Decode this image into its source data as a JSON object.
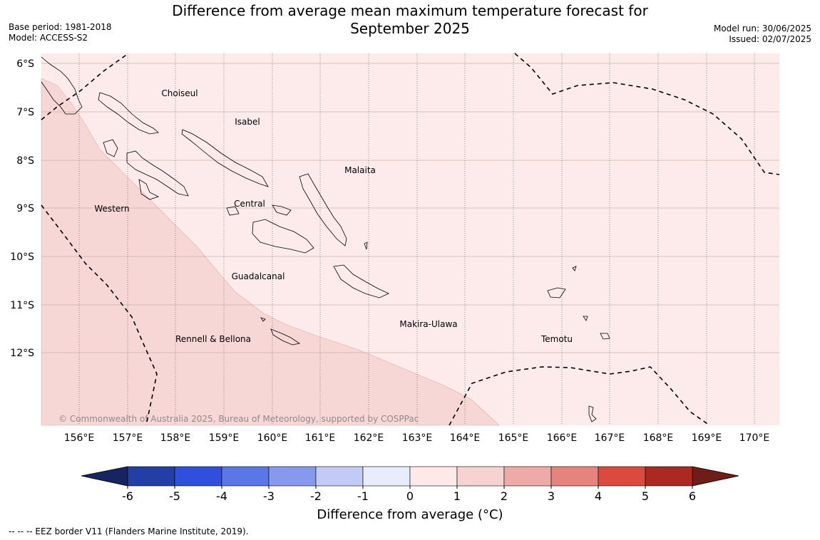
{
  "title_line1": "Difference from average mean maximum temperature forecast for",
  "title_line2": "September 2025",
  "base_period": "Base period: 1981-2018",
  "model": "Model: ACCESS-S2",
  "model_run": "Model run: 30/06/2025",
  "issued": "Issued: 02/07/2025",
  "map": {
    "lat_labels": [
      "6°S",
      "7°S",
      "8°S",
      "9°S",
      "10°S",
      "11°S",
      "12°S"
    ],
    "lon_labels": [
      "156°E",
      "157°E",
      "158°E",
      "159°E",
      "160°E",
      "161°E",
      "162°E",
      "163°E",
      "164°E",
      "165°E",
      "166°E",
      "167°E",
      "168°E",
      "169°E",
      "170°E"
    ],
    "regions": [
      "Choiseul",
      "Isabel",
      "Malaita",
      "Western",
      "Central",
      "Guadalcanal",
      "Makira-Ulawa",
      "Rennell & Bellona",
      "Temotu"
    ],
    "copyright": "© Commonwealth of Australia 2025, Bureau of Meteorology, supported by COSPPac",
    "shading": [
      {
        "range": "0 to 1",
        "area": "most of the map"
      },
      {
        "range": "1 to 2",
        "area": "southwest"
      }
    ]
  },
  "colorbar": {
    "ticks": [
      "-6",
      "-5",
      "-4",
      "-3",
      "-2",
      "-1",
      "0",
      "1",
      "2",
      "3",
      "4",
      "5",
      "6"
    ],
    "colors": [
      "#233fa6",
      "#2f4fdc",
      "#5b76e6",
      "#8699ec",
      "#c2cbf5",
      "#e8ecfc",
      "#fce9e8",
      "#f6d2d0",
      "#edaaa7",
      "#e5837c",
      "#dc4a3f",
      "#ab2922"
    ],
    "extend_low_color": "#162461",
    "extend_high_color": "#6e1d18",
    "label": "Difference from average (°C)"
  },
  "footnote": "--  --  -- EEZ border V11 (Flanders Marine Institute, 2019)."
}
